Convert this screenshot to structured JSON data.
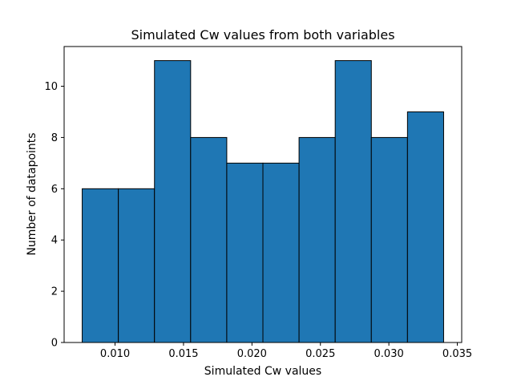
{
  "chart_data": {
    "type": "bar",
    "title": "Simulated Cw values from both variables",
    "xlabel": "Simulated Cw values",
    "ylabel": "Number of datapoints",
    "bin_edges": [
      0.0076,
      0.01024,
      0.01288,
      0.01552,
      0.01816,
      0.0208,
      0.02344,
      0.02608,
      0.02872,
      0.03136,
      0.034
    ],
    "values": [
      6,
      6,
      11,
      8,
      7,
      7,
      8,
      11,
      8,
      9
    ],
    "xlim": [
      0.00628,
      0.03532
    ],
    "ylim": [
      0,
      11.55
    ],
    "xticks": [
      0.01,
      0.015,
      0.02,
      0.025,
      0.03,
      0.035
    ],
    "xtick_labels": [
      "0.010",
      "0.015",
      "0.020",
      "0.025",
      "0.030",
      "0.035"
    ],
    "yticks": [
      0,
      2,
      4,
      6,
      8,
      10
    ],
    "ytick_labels": [
      "0",
      "2",
      "4",
      "6",
      "8",
      "10"
    ],
    "grid": false,
    "bar_color": "#1f77b4",
    "edge_color": "#000000"
  }
}
